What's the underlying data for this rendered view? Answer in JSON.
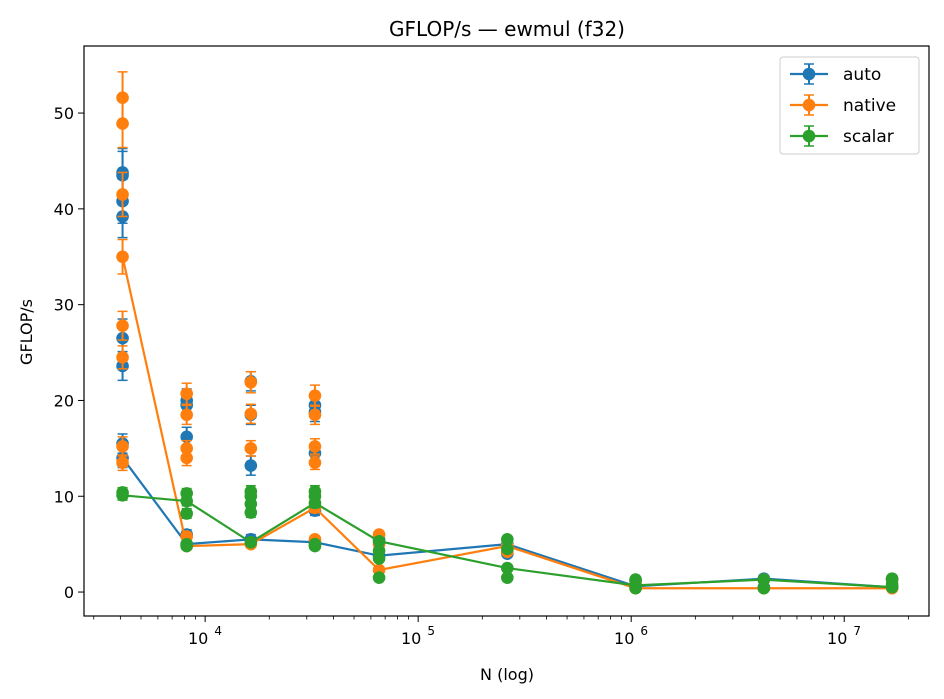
{
  "chart_data": {
    "type": "line",
    "title": "GFLOP/s — ewmul (f32)",
    "xlabel": "N (log)",
    "ylabel": "GFLOP/s",
    "xscale": "log",
    "xlim": [
      2700,
      25000000
    ],
    "ylim": [
      -2.5,
      57
    ],
    "yticks": [
      0,
      10,
      20,
      30,
      40,
      50
    ],
    "xticks": [
      {
        "value": 10000,
        "base": "10",
        "exp": "4"
      },
      {
        "value": 100000,
        "base": "10",
        "exp": "5"
      },
      {
        "value": 1000000,
        "base": "10",
        "exp": "6"
      },
      {
        "value": 10000000,
        "base": "10",
        "exp": "7"
      }
    ],
    "grid": false,
    "legend_position": "top-right",
    "series": [
      {
        "name": "auto",
        "color": "#1f77b4",
        "line": [
          [
            4096,
            14
          ],
          [
            8192,
            5
          ],
          [
            16384,
            5.5
          ],
          [
            32768,
            5.2
          ],
          [
            65536,
            3.8
          ],
          [
            262144,
            5
          ],
          [
            1048576,
            0.6
          ],
          [
            4194304,
            1.4
          ],
          [
            16777216,
            0.5
          ]
        ],
        "points": [
          [
            4096,
            43.8,
            2.5
          ],
          [
            4096,
            43.5,
            2.5
          ],
          [
            4096,
            40.8,
            2.3
          ],
          [
            4096,
            39.2,
            2.2
          ],
          [
            4096,
            26.5,
            2
          ],
          [
            4096,
            23.6,
            1.5
          ],
          [
            4096,
            15.5,
            1
          ],
          [
            4096,
            14,
            1
          ],
          [
            8192,
            20,
            1.2
          ],
          [
            8192,
            19.5,
            1.2
          ],
          [
            8192,
            16.2,
            1
          ],
          [
            8192,
            5,
            0.5
          ],
          [
            8192,
            6,
            0.5
          ],
          [
            16384,
            22,
            1
          ],
          [
            16384,
            18.5,
            1
          ],
          [
            16384,
            13.2,
            1
          ],
          [
            16384,
            5.5,
            0.5
          ],
          [
            32768,
            19.5,
            1
          ],
          [
            32768,
            18.8,
            1
          ],
          [
            32768,
            14.5,
            1
          ],
          [
            32768,
            8.5,
            0.5
          ],
          [
            32768,
            5.2,
            0.5
          ],
          [
            65536,
            5.5,
            0.3
          ],
          [
            65536,
            3.8,
            0.3
          ],
          [
            262144,
            5,
            0.3
          ],
          [
            262144,
            4,
            0.3
          ],
          [
            1048576,
            1.2,
            0.1
          ],
          [
            1048576,
            0.6,
            0.1
          ],
          [
            4194304,
            1.4,
            0.1
          ],
          [
            4194304,
            0.5,
            0.1
          ],
          [
            16777216,
            1.3,
            0.1
          ],
          [
            16777216,
            0.5,
            0.1
          ]
        ]
      },
      {
        "name": "native",
        "color": "#ff7f0e",
        "line": [
          [
            4096,
            35
          ],
          [
            8192,
            4.8
          ],
          [
            16384,
            5
          ],
          [
            32768,
            8.8
          ],
          [
            65536,
            2.3
          ],
          [
            262144,
            4.8
          ],
          [
            1048576,
            0.4
          ],
          [
            4194304,
            0.4
          ],
          [
            16777216,
            0.4
          ]
        ],
        "points": [
          [
            4096,
            51.6,
            2.7
          ],
          [
            4096,
            48.9,
            2.5
          ],
          [
            4096,
            41.5,
            2.3
          ],
          [
            4096,
            35,
            1.8
          ],
          [
            4096,
            27.8,
            1.5
          ],
          [
            4096,
            24.5,
            1.2
          ],
          [
            4096,
            15.2,
            1
          ],
          [
            4096,
            13.5,
            0.8
          ],
          [
            8192,
            20.7,
            1.1
          ],
          [
            8192,
            18.5,
            1
          ],
          [
            8192,
            15,
            0.8
          ],
          [
            8192,
            14,
            0.8
          ],
          [
            8192,
            5.8,
            0.4
          ],
          [
            8192,
            4.8,
            0.3
          ],
          [
            16384,
            21.9,
            1.1
          ],
          [
            16384,
            18.6,
            1
          ],
          [
            16384,
            15,
            0.8
          ],
          [
            16384,
            5,
            0.3
          ],
          [
            32768,
            20.5,
            1.1
          ],
          [
            32768,
            18.5,
            1
          ],
          [
            32768,
            15.2,
            0.8
          ],
          [
            32768,
            13.5,
            0.7
          ],
          [
            32768,
            8.8,
            0.5
          ],
          [
            32768,
            5.5,
            0.3
          ],
          [
            65536,
            6,
            0.3
          ],
          [
            65536,
            5,
            0.3
          ],
          [
            65536,
            2.3,
            0.2
          ],
          [
            262144,
            4.8,
            0.3
          ],
          [
            262144,
            4.2,
            0.3
          ],
          [
            1048576,
            1.1,
            0.1
          ],
          [
            1048576,
            0.4,
            0.1
          ],
          [
            4194304,
            1.3,
            0.1
          ],
          [
            4194304,
            0.4,
            0.1
          ],
          [
            16777216,
            1.3,
            0.1
          ],
          [
            16777216,
            0.4,
            0.1
          ]
        ]
      },
      {
        "name": "scalar",
        "color": "#2ca02c",
        "line": [
          [
            4096,
            10.1
          ],
          [
            8192,
            9.5
          ],
          [
            16384,
            5.2
          ],
          [
            32768,
            9.3
          ],
          [
            65536,
            5.3
          ],
          [
            262144,
            2.5
          ],
          [
            1048576,
            0.7
          ],
          [
            4194304,
            1.3
          ],
          [
            16777216,
            0.5
          ]
        ],
        "points": [
          [
            4096,
            10.4,
            0.5
          ],
          [
            4096,
            10.1,
            0.5
          ],
          [
            8192,
            10.3,
            0.5
          ],
          [
            8192,
            9.5,
            0.5
          ],
          [
            8192,
            8.2,
            0.5
          ],
          [
            8192,
            5,
            0.3
          ],
          [
            8192,
            4.8,
            0.3
          ],
          [
            16384,
            10.5,
            0.6
          ],
          [
            16384,
            10,
            0.6
          ],
          [
            16384,
            9.2,
            0.5
          ],
          [
            16384,
            8.3,
            0.5
          ],
          [
            16384,
            5.2,
            0.3
          ],
          [
            32768,
            10.5,
            0.6
          ],
          [
            32768,
            10,
            0.6
          ],
          [
            32768,
            9.3,
            0.5
          ],
          [
            32768,
            5,
            0.3
          ],
          [
            32768,
            4.8,
            0.3
          ],
          [
            65536,
            5.3,
            0.3
          ],
          [
            65536,
            4.3,
            0.3
          ],
          [
            65536,
            3.5,
            0.2
          ],
          [
            65536,
            1.5,
            0.1
          ],
          [
            262144,
            5.5,
            0.3
          ],
          [
            262144,
            4.5,
            0.3
          ],
          [
            262144,
            2.5,
            0.2
          ],
          [
            262144,
            1.5,
            0.1
          ],
          [
            1048576,
            1.3,
            0.1
          ],
          [
            1048576,
            0.7,
            0.1
          ],
          [
            1048576,
            0.4,
            0.1
          ],
          [
            4194304,
            1.3,
            0.1
          ],
          [
            4194304,
            0.4,
            0.1
          ],
          [
            16777216,
            1.4,
            0.1
          ],
          [
            16777216,
            0.8,
            0.1
          ],
          [
            16777216,
            0.5,
            0.1
          ]
        ]
      }
    ]
  }
}
